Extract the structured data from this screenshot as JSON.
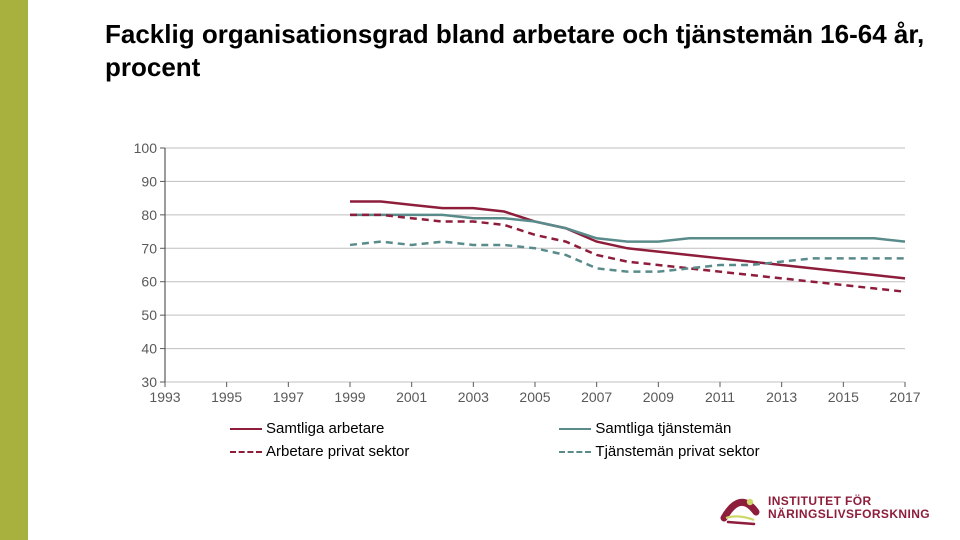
{
  "title": "Facklig organisationsgrad bland arbetare och tjänstemän 16-64 år, procent",
  "title_fontsize": 26,
  "title_color": "#000000",
  "sidebar_color": "#a8b03e",
  "chart": {
    "type": "line",
    "background_color": "#ffffff",
    "axis_color": "#595959",
    "grid_color": "#bfbfbf",
    "tick_fontsize": 14,
    "years": [
      1993,
      1994,
      1995,
      1996,
      1997,
      1998,
      1999,
      2000,
      2001,
      2002,
      2003,
      2004,
      2005,
      2006,
      2007,
      2008,
      2009,
      2010,
      2011,
      2012,
      2013,
      2014,
      2015,
      2016,
      2017
    ],
    "x_tick_labels": [
      "1993",
      "1995",
      "1997",
      "1999",
      "2001",
      "2003",
      "2005",
      "2007",
      "2009",
      "2011",
      "2013",
      "2015",
      "2017"
    ],
    "x_tick_years": [
      1993,
      1995,
      1997,
      1999,
      2001,
      2003,
      2005,
      2007,
      2009,
      2011,
      2013,
      2015,
      2017
    ],
    "ylim": [
      30,
      100
    ],
    "ytick_step": 10,
    "line_width": 2.5,
    "series": [
      {
        "key": "samtliga_arbetare",
        "label": "Samtliga arbetare",
        "color": "#8e1d3b",
        "dash": "solid",
        "start_year": 1999,
        "values": [
          84,
          84,
          83,
          82,
          82,
          81,
          78,
          76,
          72,
          70,
          69,
          68,
          67,
          66,
          65,
          64,
          63,
          62,
          61
        ]
      },
      {
        "key": "samtliga_tjansteman",
        "label": "Samtliga tjänstemän",
        "color": "#5a8b8b",
        "dash": "solid",
        "start_year": 1999,
        "values": [
          80,
          80,
          80,
          80,
          79,
          79,
          78,
          76,
          73,
          72,
          72,
          73,
          73,
          73,
          73,
          73,
          73,
          73,
          72
        ]
      },
      {
        "key": "arbetare_privat",
        "label": "Arbetare privat sektor",
        "color": "#8e1d3b",
        "dash": "dashed",
        "start_year": 1999,
        "values": [
          80,
          80,
          79,
          78,
          78,
          77,
          74,
          72,
          68,
          66,
          65,
          64,
          63,
          62,
          61,
          60,
          59,
          58,
          57
        ]
      },
      {
        "key": "tjansteman_privat",
        "label": "Tjänstemän privat sektor",
        "color": "#5a8b8b",
        "dash": "dashed",
        "start_year": 1999,
        "values": [
          71,
          72,
          71,
          72,
          71,
          71,
          70,
          68,
          64,
          63,
          63,
          64,
          65,
          65,
          66,
          67,
          67,
          67,
          67
        ]
      }
    ],
    "legend": {
      "fontsize": 15,
      "swatch_width": 32
    }
  },
  "logo": {
    "line1": "INSTITUTET FÖR",
    "line2": "NÄRINGSLIVSFORSKNING",
    "text_color": "#8e1d3b",
    "icon_fill": "#8e1d3b",
    "icon_accent": "#cfd86b"
  }
}
